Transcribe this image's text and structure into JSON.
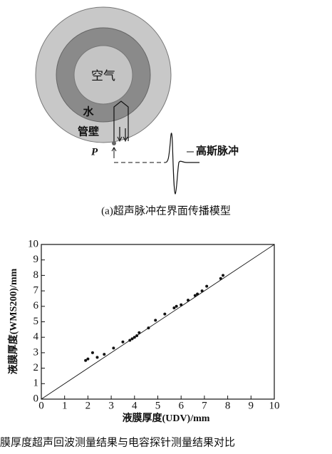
{
  "diagram": {
    "air": "空气",
    "water": "水",
    "wall": "管壁",
    "point": "P",
    "pulse": "高斯脉冲",
    "caption": "(a)超声脉冲在界面传播模型"
  },
  "chart_data": {
    "type": "scatter",
    "x": [
      1.9,
      2.0,
      2.2,
      2.4,
      2.7,
      3.1,
      3.5,
      3.8,
      3.9,
      4.0,
      4.1,
      4.2,
      4.6,
      4.9,
      5.3,
      5.7,
      5.8,
      6.0,
      6.3,
      6.6,
      6.7,
      6.9,
      7.1,
      7.7,
      7.8
    ],
    "values": [
      2.5,
      2.6,
      3.0,
      2.7,
      2.9,
      3.3,
      3.7,
      3.8,
      3.9,
      4.0,
      4.1,
      4.3,
      4.6,
      5.1,
      5.5,
      5.9,
      6.0,
      6.1,
      6.4,
      6.7,
      6.8,
      7.0,
      7.3,
      7.8,
      8.0
    ],
    "color": "#111111",
    "xlabel": "液膜厚度(UDV)/mm",
    "ylabel": "液膜厚度(WMS200)/mm",
    "xlim": [
      0,
      10
    ],
    "ylim": [
      0,
      10
    ],
    "xticks": [
      0,
      1,
      2,
      3,
      4,
      5,
      6,
      7,
      8,
      9,
      10
    ],
    "yticks": [
      0,
      1,
      2,
      3,
      4,
      5,
      6,
      7,
      8,
      9,
      10
    ],
    "caption": "膜厚度超声回波测量结果与电容探针测量结果对比"
  }
}
